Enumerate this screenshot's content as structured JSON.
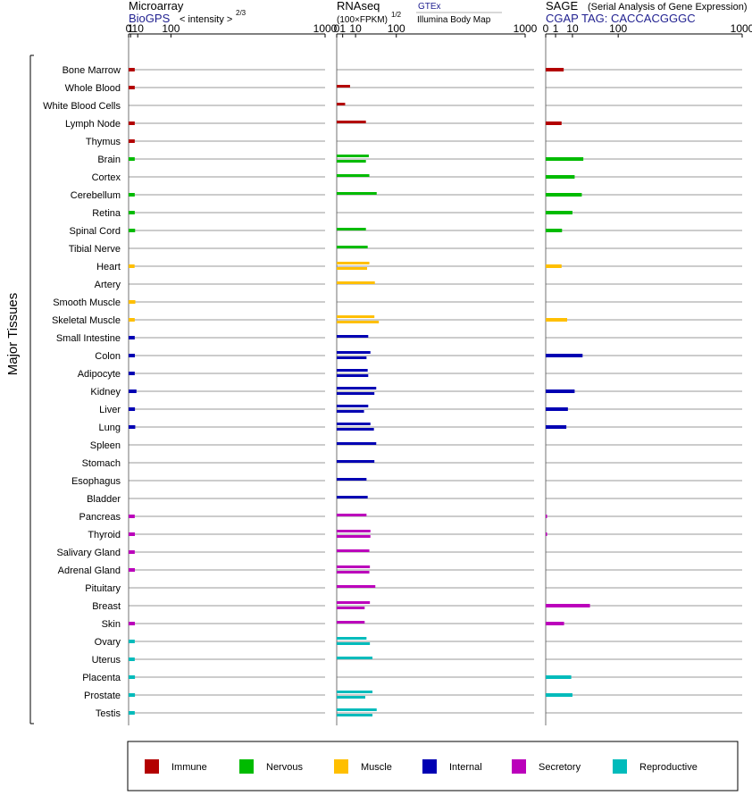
{
  "side_label": "Major Tissues",
  "tissues": [
    "Bone Marrow",
    "Whole Blood",
    "White Blood Cells",
    "Lymph Node",
    "Thymus",
    "Brain",
    "Cortex",
    "Cerebellum",
    "Retina",
    "Spinal Cord",
    "Tibial Nerve",
    "Heart",
    "Artery",
    "Smooth Muscle",
    "Skeletal Muscle",
    "Small Intestine",
    "Colon",
    "Adipocyte",
    "Kidney",
    "Liver",
    "Lung",
    "Spleen",
    "Stomach",
    "Esophagus",
    "Bladder",
    "Pancreas",
    "Thyroid",
    "Salivary Gland",
    "Adrenal Gland",
    "Pituitary",
    "Breast",
    "Skin",
    "Ovary",
    "Uterus",
    "Placenta",
    "Prostate",
    "Testis"
  ],
  "tissue_groups": [
    "Immune",
    "Immune",
    "Immune",
    "Immune",
    "Immune",
    "Nervous",
    "Nervous",
    "Nervous",
    "Nervous",
    "Nervous",
    "Nervous",
    "Muscle",
    "Muscle",
    "Muscle",
    "Muscle",
    "Internal",
    "Internal",
    "Internal",
    "Internal",
    "Internal",
    "Internal",
    "Internal",
    "Internal",
    "Internal",
    "Internal",
    "Secretory",
    "Secretory",
    "Secretory",
    "Secretory",
    "Secretory",
    "Secretory",
    "Secretory",
    "Reproductive",
    "Reproductive",
    "Reproductive",
    "Reproductive",
    "Reproductive"
  ],
  "colors": {
    "Immune": "#b30000",
    "Nervous": "#00bb00",
    "Muscle": "#ffbf00",
    "Internal": "#0000b3",
    "Secretory": "#bb00bb",
    "Reproductive": "#00bbbb"
  },
  "legend": [
    {
      "name": "Immune",
      "color": "#b30000"
    },
    {
      "name": "Nervous",
      "color": "#00bb00"
    },
    {
      "name": "Muscle",
      "color": "#ffbf00"
    },
    {
      "name": "Internal",
      "color": "#0000b3"
    },
    {
      "name": "Secretory",
      "color": "#bb00bb"
    },
    {
      "name": "Reproductive",
      "color": "#00bbbb"
    }
  ],
  "panels": {
    "microarray": {
      "title": "Microarray",
      "subtitle": "BioGPS",
      "unit_label": "< intensity >",
      "unit_exponent": "2/3",
      "ticks": [
        "0",
        "1",
        "10",
        "100",
        "1000"
      ]
    },
    "rnaseq": {
      "title": "RNAseq",
      "unit_label": "(100×FPKM)",
      "unit_exponent": "1/2",
      "source_1": "GTEx",
      "source_2": "Illumina Body Map",
      "ticks": [
        "0",
        "1",
        "10",
        "100",
        "1000"
      ]
    },
    "sage": {
      "title": "SAGE",
      "title_note": "(Serial Analysis of Gene Expression)",
      "subtitle": "CGAP TAG: CACCACGGGC",
      "ticks": [
        "0",
        "1",
        "10",
        "100",
        "1000"
      ]
    }
  },
  "chart_data": [
    {
      "type": "bar",
      "title": "Microarray",
      "scale": "transformed (power 2/3)",
      "xlim": [
        0,
        1000
      ],
      "categories": [
        "Bone Marrow",
        "Whole Blood",
        "White Blood Cells",
        "Lymph Node",
        "Thymus",
        "Brain",
        "Cortex",
        "Cerebellum",
        "Retina",
        "Spinal Cord",
        "Tibial Nerve",
        "Heart",
        "Artery",
        "Smooth Muscle",
        "Skeletal Muscle",
        "Small Intestine",
        "Colon",
        "Adipocyte",
        "Kidney",
        "Liver",
        "Lung",
        "Spleen",
        "Stomach",
        "Esophagus",
        "Bladder",
        "Pancreas",
        "Thyroid",
        "Salivary Gland",
        "Adrenal Gland",
        "Pituitary",
        "Breast",
        "Skin",
        "Ovary",
        "Uterus",
        "Placenta",
        "Prostate",
        "Testis"
      ],
      "series": [
        {
          "values": [
            [
              5.5
            ],
            [
              5.5
            ],
            [],
            [
              5.5
            ],
            [
              5.5
            ],
            [
              5.5
            ],
            [],
            [
              5.5
            ],
            [
              5.5
            ],
            [
              6
            ],
            [],
            [
              5.3
            ],
            [],
            [
              6.3
            ],
            [
              5.5
            ],
            [
              5.5
            ],
            [
              5.7
            ],
            [
              5.5
            ],
            [
              8
            ],
            [
              5.8
            ],
            [
              6.2
            ],
            [],
            [],
            [],
            [],
            [
              5.5
            ],
            [
              5.7
            ],
            [
              5.5
            ],
            [
              5.7
            ],
            [],
            [],
            [
              5.7
            ],
            [
              5.5
            ],
            [
              5.5
            ],
            [
              5.8
            ],
            [
              5.8
            ],
            [
              5.5
            ]
          ]
        }
      ]
    },
    {
      "type": "bar",
      "title": "RNAseq",
      "scale": "transformed (power 1/2)",
      "xlim": [
        0,
        1000
      ],
      "categories": [
        "Bone Marrow",
        "Whole Blood",
        "White Blood Cells",
        "Lymph Node",
        "Thymus",
        "Brain",
        "Cortex",
        "Cerebellum",
        "Retina",
        "Spinal Cord",
        "Tibial Nerve",
        "Heart",
        "Artery",
        "Smooth Muscle",
        "Skeletal Muscle",
        "Small Intestine",
        "Colon",
        "Adipocyte",
        "Kidney",
        "Liver",
        "Lung",
        "Spleen",
        "Stomach",
        "Esophagus",
        "Bladder",
        "Pancreas",
        "Thyroid",
        "Salivary Gland",
        "Adrenal Gland",
        "Pituitary",
        "Breast",
        "Skin",
        "Ovary",
        "Uterus",
        "Placenta",
        "Prostate",
        "Testis"
      ],
      "series": [
        {
          "values": [
            [],
            [
              5
            ],
            [
              2
            ],
            [
              24
            ],
            [],
            [
              29,
              24
            ],
            [
              30
            ],
            [
              45
            ],
            [],
            [
              24
            ],
            [
              27
            ],
            [
              30,
              26
            ],
            [
              41
            ],
            [],
            [
              40,
              50
            ],
            [
              28
            ],
            [
              32,
              25
            ],
            [
              27,
              28
            ],
            [
              44,
              40
            ],
            [
              28,
              21
            ],
            [
              32,
              39
            ],
            [
              44
            ],
            [
              40
            ],
            [
              25
            ],
            [
              27
            ],
            [
              25
            ],
            [
              32,
              32
            ],
            [
              30
            ],
            [
              31,
              30
            ],
            [
              42
            ],
            [
              31,
              22
            ],
            [
              22
            ],
            [
              25,
              31
            ],
            [
              36
            ],
            [],
            [
              36,
              23
            ],
            [
              45,
              36
            ]
          ]
        }
      ]
    },
    {
      "type": "bar",
      "title": "SAGE",
      "scale": "transformed",
      "xlim": [
        0,
        1000
      ],
      "categories": [
        "Bone Marrow",
        "Whole Blood",
        "White Blood Cells",
        "Lymph Node",
        "Thymus",
        "Brain",
        "Cortex",
        "Cerebellum",
        "Retina",
        "Spinal Cord",
        "Tibial Nerve",
        "Heart",
        "Artery",
        "Smooth Muscle",
        "Skeletal Muscle",
        "Small Intestine",
        "Colon",
        "Adipocyte",
        "Kidney",
        "Liver",
        "Lung",
        "Spleen",
        "Stomach",
        "Esophagus",
        "Bladder",
        "Pancreas",
        "Thyroid",
        "Salivary Gland",
        "Adrenal Gland",
        "Pituitary",
        "Breast",
        "Skin",
        "Ovary",
        "Uterus",
        "Placenta",
        "Prostate",
        "Testis"
      ],
      "series": [
        {
          "values": [
            [
              4
            ],
            [],
            [],
            [
              3
            ],
            [],
            [
              22
            ],
            [
              12
            ],
            [
              20
            ],
            [
              10
            ],
            [
              3.2
            ],
            [],
            [
              3
            ],
            [],
            [],
            [
              6
            ],
            [],
            [
              21
            ],
            [],
            [
              12
            ],
            [
              6.5
            ],
            [
              5.5
            ],
            [],
            [],
            [],
            [],
            [
              0.01
            ],
            [
              0.01
            ],
            [],
            [],
            [],
            [
              32
            ],
            [
              4.2
            ],
            [],
            [],
            [
              9
            ],
            [
              10
            ],
            []
          ]
        }
      ]
    }
  ]
}
